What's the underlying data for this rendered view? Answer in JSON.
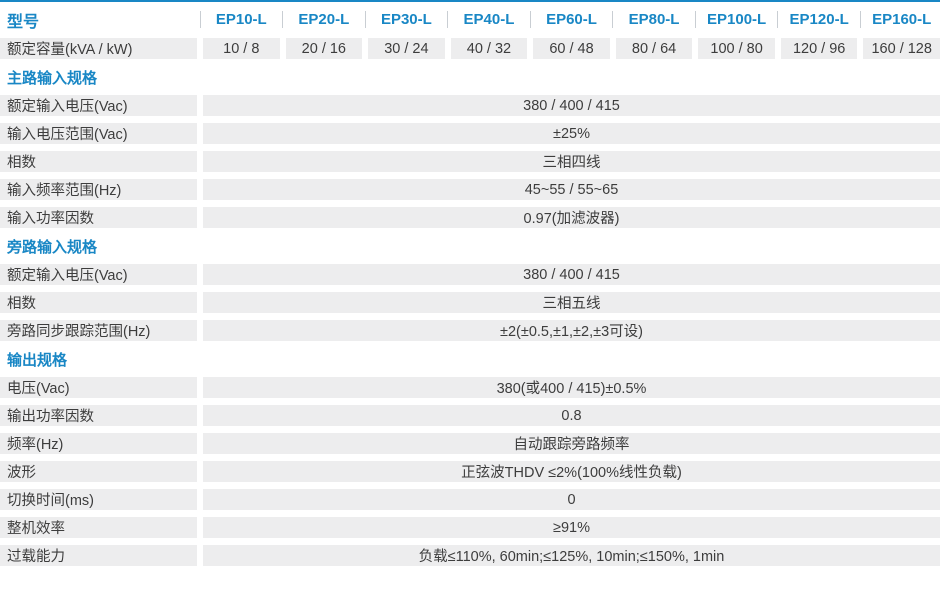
{
  "colors": {
    "accent_blue": "#1987c5",
    "cell_gray": "#ededee",
    "text_dark": "#3d3d3d",
    "divider_gray": "#c9ced3"
  },
  "header": {
    "model_label": "型号",
    "models": [
      "EP10-L",
      "EP20-L",
      "EP30-L",
      "EP40-L",
      "EP60-L",
      "EP80-L",
      "EP100-L",
      "EP120-L",
      "EP160-L"
    ]
  },
  "capacity_row": {
    "label": "额定容量(kVA / kW)",
    "values": [
      "10 / 8",
      "20 / 16",
      "30 / 24",
      "40 / 32",
      "60 / 48",
      "80 / 64",
      "100 / 80",
      "120 / 96",
      "160 / 128"
    ]
  },
  "sections": [
    {
      "title": "主路输入规格",
      "rows": [
        {
          "label": "额定输入电压(Vac)",
          "value": "380 / 400 / 415"
        },
        {
          "label": "输入电压范围(Vac)",
          "value": "±25%"
        },
        {
          "label": "相数",
          "value": "三相四线"
        },
        {
          "label": "输入频率范围(Hz)",
          "value": "45~55 / 55~65"
        },
        {
          "label": "输入功率因数",
          "value": "0.97(加滤波器)"
        }
      ]
    },
    {
      "title": "旁路输入规格",
      "rows": [
        {
          "label": "额定输入电压(Vac)",
          "value": "380 / 400 / 415"
        },
        {
          "label": "相数",
          "value": "三相五线"
        },
        {
          "label": "旁路同步跟踪范围(Hz)",
          "value": "±2(±0.5,±1,±2,±3可设)"
        }
      ]
    },
    {
      "title": "输出规格",
      "rows": [
        {
          "label": "电压(Vac)",
          "value": "380(或400 / 415)±0.5%"
        },
        {
          "label": "输出功率因数",
          "value": "0.8"
        },
        {
          "label": "频率(Hz)",
          "value": "自动跟踪旁路频率"
        },
        {
          "label": "波形",
          "value": "正弦波THDV ≤2%(100%线性负载)"
        },
        {
          "label": "切换时间(ms)",
          "value": "0"
        },
        {
          "label": "整机效率",
          "value": "≥91%"
        },
        {
          "label": "过载能力",
          "value": "负载≤110%, 60min;≤125%, 10min;≤150%, 1min"
        }
      ]
    }
  ]
}
